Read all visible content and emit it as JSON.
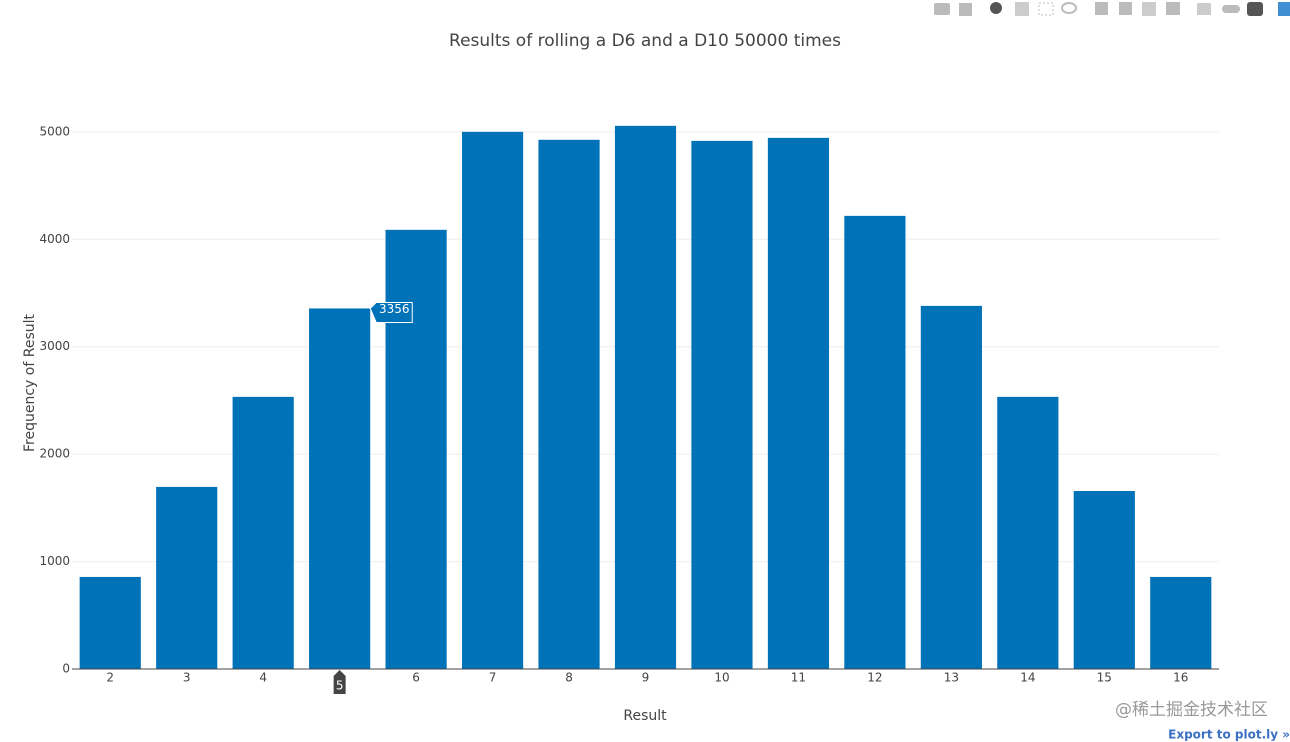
{
  "chart_data": {
    "type": "bar",
    "title": "Results of rolling a D6 and a D10 50000 times",
    "x_label": "Result",
    "y_label": "Frequency of Result",
    "categories": [
      2,
      3,
      4,
      5,
      6,
      7,
      8,
      9,
      10,
      11,
      12,
      13,
      14,
      15,
      16
    ],
    "values": [
      857,
      1695,
      2533,
      3356,
      4088,
      5000,
      4926,
      5056,
      4916,
      4944,
      4218,
      3380,
      2533,
      1657,
      857
    ],
    "color": "#0072b8",
    "ylim": [
      0,
      5250
    ],
    "yticks": [
      0,
      1000,
      2000,
      3000,
      4000,
      5000
    ],
    "grid": true,
    "hover_index": 3
  },
  "export_link": "Export to plot.ly »",
  "watermark": "@稀土掘金技术社区"
}
